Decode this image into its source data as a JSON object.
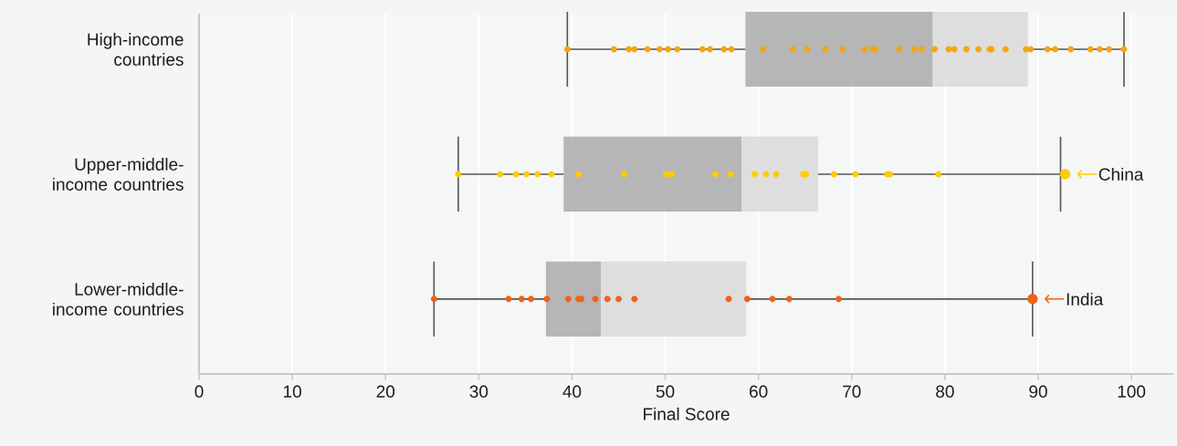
{
  "chart_data": {
    "type": "box",
    "orientation": "horizontal",
    "xlabel": "Final Score",
    "categories": [
      "High-income countries",
      "Upper-middle-income countries",
      "Lower-middle-income countries"
    ],
    "boxes": [
      {
        "low": 39.5,
        "q1": 58.6,
        "median": 78.7,
        "q3": 88.9,
        "high": 99.2
      },
      {
        "low": 27.8,
        "q1": 39.1,
        "median": 58.2,
        "q3": 66.4,
        "high": 92.4
      },
      {
        "low": 25.2,
        "q1": 37.2,
        "median": 43.1,
        "q3": 58.7,
        "high": 89.4
      }
    ],
    "series": [
      {
        "type": "scatter",
        "color": "#f5a511",
        "x": [
          "High-income countries",
          "High-income countries",
          "High-income countries",
          "High-income countries",
          "High-income countries",
          "High-income countries",
          "High-income countries",
          "High-income countries",
          "High-income countries",
          "High-income countries",
          "High-income countries",
          "High-income countries",
          "High-income countries",
          "High-income countries",
          "High-income countries",
          "High-income countries",
          "High-income countries",
          "High-income countries",
          "High-income countries",
          "High-income countries",
          "High-income countries",
          "High-income countries",
          "High-income countries",
          "High-income countries",
          "High-income countries",
          "High-income countries",
          "High-income countries",
          "High-income countries",
          "High-income countries",
          "High-income countries",
          "High-income countries",
          "High-income countries",
          "High-income countries",
          "High-income countries",
          "High-income countries",
          "High-income countries",
          "High-income countries",
          "High-income countries",
          "High-income countries",
          "High-income countries"
        ],
        "values": [
          39.5,
          44.5,
          46.1,
          46.7,
          48.1,
          49.4,
          50.3,
          51.3,
          54.0,
          54.8,
          56.3,
          57.1,
          60.5,
          63.7,
          65.2,
          67.2,
          69.0,
          71.4,
          72.3,
          72.5,
          75.1,
          76.7,
          77.5,
          78.9,
          80.4,
          81.0,
          82.3,
          83.6,
          84.8,
          85.0,
          86.5,
          88.7,
          89.2,
          91.0,
          91.8,
          93.5,
          95.6,
          96.6,
          97.6,
          99.2
        ]
      },
      {
        "type": "scatter",
        "color": "#ffcc00",
        "x": [
          "Upper-middle-income countries",
          "Upper-middle-income countries",
          "Upper-middle-income countries",
          "Upper-middle-income countries",
          "Upper-middle-income countries",
          "Upper-middle-income countries",
          "Upper-middle-income countries",
          "Upper-middle-income countries",
          "Upper-middle-income countries",
          "Upper-middle-income countries",
          "Upper-middle-income countries",
          "Upper-middle-income countries",
          "Upper-middle-income countries",
          "Upper-middle-income countries",
          "Upper-middle-income countries",
          "Upper-middle-income countries",
          "Upper-middle-income countries",
          "Upper-middle-income countries",
          "Upper-middle-income countries",
          "Upper-middle-income countries",
          "Upper-middle-income countries",
          "Upper-middle-income countries"
        ],
        "values": [
          27.8,
          32.3,
          34.0,
          35.1,
          36.3,
          37.8,
          40.7,
          45.6,
          50.1,
          50.7,
          55.4,
          57.0,
          59.6,
          60.8,
          61.9,
          64.8,
          65.1,
          68.1,
          70.4,
          73.8,
          74.1,
          79.3
        ]
      },
      {
        "type": "scatter",
        "color": "#ee6118",
        "x": [
          "Lower-middle-income countries",
          "Lower-middle-income countries",
          "Lower-middle-income countries",
          "Lower-middle-income countries",
          "Lower-middle-income countries",
          "Lower-middle-income countries",
          "Lower-middle-income countries",
          "Lower-middle-income countries",
          "Lower-middle-income countries",
          "Lower-middle-income countries",
          "Lower-middle-income countries",
          "Lower-middle-income countries",
          "Lower-middle-income countries",
          "Lower-middle-income countries",
          "Lower-middle-income countries",
          "Lower-middle-income countries",
          "Lower-middle-income countries"
        ],
        "values": [
          25.2,
          33.2,
          34.6,
          35.6,
          37.3,
          39.6,
          40.7,
          41.0,
          42.5,
          43.8,
          45.0,
          46.7,
          56.8,
          58.8,
          61.5,
          63.3,
          68.6
        ]
      },
      {
        "type": "scatter",
        "color": "#ffcc00",
        "x": [
          "Upper-middle-income countries"
        ],
        "values": [
          92.9
        ]
      },
      {
        "type": "scatter",
        "color": "#ee6118",
        "x": [
          "Lower-middle-income countries"
        ],
        "values": [
          89.4
        ]
      }
    ],
    "annotations": [
      {
        "text": "China",
        "x": 92.9,
        "y": "Upper-middle-income countries"
      },
      {
        "text": "India",
        "x": 89.4,
        "y": "Lower-middle-income countries"
      }
    ],
    "xlim": [
      0,
      104.5
    ],
    "xticks": [
      0,
      10,
      20,
      30,
      40,
      50,
      60,
      70,
      80,
      90,
      100
    ],
    "grid": "x",
    "marker": "circle"
  }
}
